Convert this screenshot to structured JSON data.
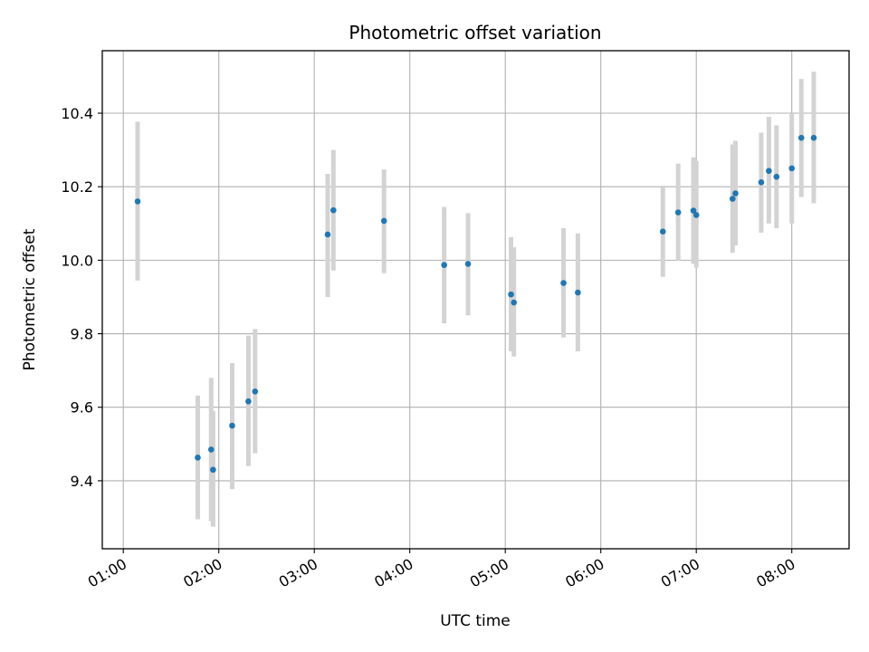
{
  "chart_data": {
    "type": "scatter",
    "title": "Photometric offset variation",
    "xlabel": "UTC time",
    "ylabel": "Photometric offset",
    "x_unit": "hours UTC",
    "xlim": [
      0.78,
      8.6
    ],
    "ylim": [
      9.215,
      10.57
    ],
    "x_ticks": [
      {
        "value": 1,
        "label": "01:00"
      },
      {
        "value": 2,
        "label": "02:00"
      },
      {
        "value": 3,
        "label": "03:00"
      },
      {
        "value": 4,
        "label": "04:00"
      },
      {
        "value": 5,
        "label": "05:00"
      },
      {
        "value": 6,
        "label": "06:00"
      },
      {
        "value": 7,
        "label": "07:00"
      },
      {
        "value": 8,
        "label": "08:00"
      }
    ],
    "y_ticks": [
      {
        "value": 9.4,
        "label": "9.4"
      },
      {
        "value": 9.6,
        "label": "9.6"
      },
      {
        "value": 9.8,
        "label": "9.8"
      },
      {
        "value": 10.0,
        "label": "10.0"
      },
      {
        "value": 10.2,
        "label": "10.2"
      },
      {
        "value": 10.4,
        "label": "10.4"
      }
    ],
    "grid": true,
    "colors": {
      "points": "#1f77b4",
      "errorbars": "#d3d3d3",
      "grid": "#b0b0b0"
    },
    "points": [
      {
        "x": 1.15,
        "y": 10.16,
        "ylow": 9.945,
        "yhigh": 10.377
      },
      {
        "x": 1.78,
        "y": 9.463,
        "ylow": 9.295,
        "yhigh": 9.632
      },
      {
        "x": 1.92,
        "y": 9.485,
        "ylow": 9.29,
        "yhigh": 9.68
      },
      {
        "x": 1.94,
        "y": 9.43,
        "ylow": 9.275,
        "yhigh": 9.59
      },
      {
        "x": 2.14,
        "y": 9.55,
        "ylow": 9.377,
        "yhigh": 9.72
      },
      {
        "x": 2.31,
        "y": 9.616,
        "ylow": 9.44,
        "yhigh": 9.795
      },
      {
        "x": 2.38,
        "y": 9.643,
        "ylow": 9.475,
        "yhigh": 9.813
      },
      {
        "x": 3.14,
        "y": 10.07,
        "ylow": 9.9,
        "yhigh": 10.235
      },
      {
        "x": 3.2,
        "y": 10.136,
        "ylow": 9.972,
        "yhigh": 10.3
      },
      {
        "x": 3.73,
        "y": 10.107,
        "ylow": 9.965,
        "yhigh": 10.247
      },
      {
        "x": 4.36,
        "y": 9.987,
        "ylow": 9.828,
        "yhigh": 10.145
      },
      {
        "x": 4.61,
        "y": 9.99,
        "ylow": 9.85,
        "yhigh": 10.128
      },
      {
        "x": 5.06,
        "y": 9.907,
        "ylow": 9.752,
        "yhigh": 10.063
      },
      {
        "x": 5.09,
        "y": 9.885,
        "ylow": 9.738,
        "yhigh": 10.035
      },
      {
        "x": 5.61,
        "y": 9.938,
        "ylow": 9.79,
        "yhigh": 10.087
      },
      {
        "x": 5.76,
        "y": 9.912,
        "ylow": 9.752,
        "yhigh": 10.073
      },
      {
        "x": 6.65,
        "y": 10.078,
        "ylow": 9.955,
        "yhigh": 10.203
      },
      {
        "x": 6.81,
        "y": 10.13,
        "ylow": 9.998,
        "yhigh": 10.263
      },
      {
        "x": 6.97,
        "y": 10.135,
        "ylow": 9.99,
        "yhigh": 10.28
      },
      {
        "x": 7.0,
        "y": 10.123,
        "ylow": 9.98,
        "yhigh": 10.27
      },
      {
        "x": 7.38,
        "y": 10.167,
        "ylow": 10.02,
        "yhigh": 10.315
      },
      {
        "x": 7.41,
        "y": 10.182,
        "ylow": 10.04,
        "yhigh": 10.325
      },
      {
        "x": 7.68,
        "y": 10.212,
        "ylow": 10.075,
        "yhigh": 10.347
      },
      {
        "x": 7.76,
        "y": 10.243,
        "ylow": 10.1,
        "yhigh": 10.39
      },
      {
        "x": 7.84,
        "y": 10.227,
        "ylow": 10.087,
        "yhigh": 10.367
      },
      {
        "x": 8.0,
        "y": 10.25,
        "ylow": 10.1,
        "yhigh": 10.4
      },
      {
        "x": 8.1,
        "y": 10.333,
        "ylow": 10.172,
        "yhigh": 10.493
      },
      {
        "x": 8.23,
        "y": 10.333,
        "ylow": 10.155,
        "yhigh": 10.513
      }
    ]
  }
}
